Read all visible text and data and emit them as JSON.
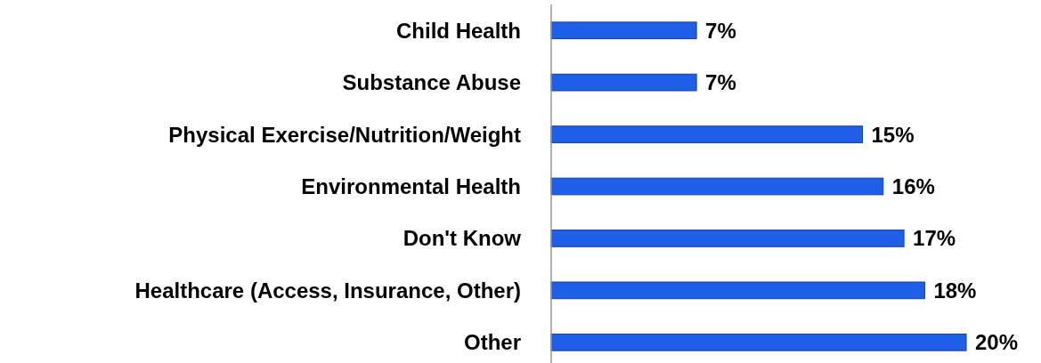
{
  "chart_data": {
    "type": "bar",
    "orientation": "horizontal",
    "categories": [
      "Child Health",
      "Substance Abuse",
      "Physical Exercise/Nutrition/Weight",
      "Environmental Health",
      "Don't Know",
      "Healthcare (Access, Insurance, Other)",
      "Other"
    ],
    "values": [
      7,
      7,
      15,
      16,
      17,
      18,
      20
    ],
    "value_labels": [
      "7%",
      "7%",
      "15%",
      "16%",
      "17%",
      "18%",
      "20%"
    ],
    "color": "#1f5fe8"
  }
}
